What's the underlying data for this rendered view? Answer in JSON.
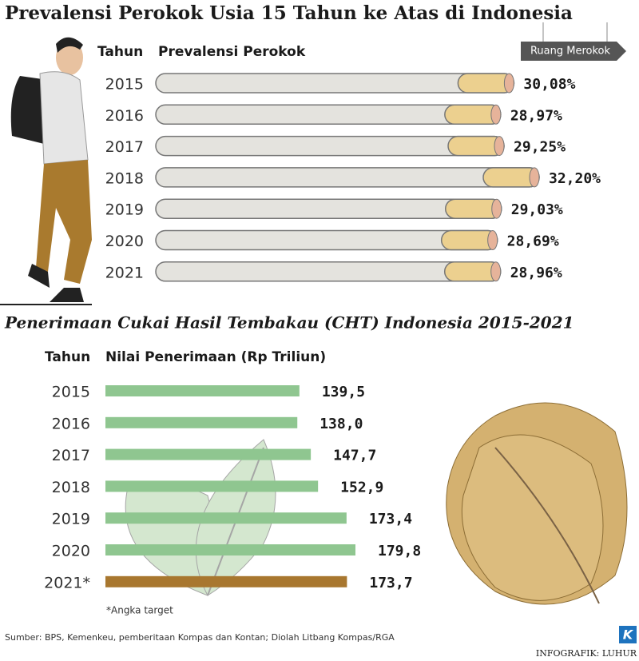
{
  "chart_data": [
    {
      "type": "bar",
      "title": "Prevalensi Perokok Usia 15 Tahun ke Atas di Indonesia",
      "category_header": "Tahun",
      "value_header": "Prevalensi Perokok",
      "signpost": "Ruang Merokok",
      "categories": [
        "2015",
        "2016",
        "2017",
        "2018",
        "2019",
        "2020",
        "2021"
      ],
      "values": [
        30.08,
        28.97,
        29.25,
        32.2,
        29.03,
        28.69,
        28.96
      ],
      "value_labels": [
        "30,08%",
        "28,97%",
        "29,25%",
        "32,20%",
        "29,03%",
        "28,69%",
        "28,96%"
      ],
      "color": "#e4e3de",
      "filter_color": "#ecd08f"
    },
    {
      "type": "bar",
      "title": "Penerimaan Cukai Hasil Tembakau (CHT) Indonesia 2015-2021",
      "category_header": "Tahun",
      "value_header": "Nilai Penerimaan (Rp Triliun)",
      "categories": [
        "2015",
        "2016",
        "2017",
        "2018",
        "2019",
        "2020",
        "2021*"
      ],
      "values": [
        139.5,
        138.0,
        147.7,
        152.9,
        173.4,
        179.8,
        173.7
      ],
      "value_labels": [
        "139,5",
        "138,0",
        "147,7",
        "152,9",
        "173,4",
        "179,8",
        "173,7"
      ],
      "colors": [
        "#8fc690",
        "#8fc690",
        "#8fc690",
        "#8fc690",
        "#8fc690",
        "#8fc690",
        "#a8772f"
      ],
      "footnote": "*Angka target"
    }
  ],
  "source": "Sumber: BPS, Kemenkeu, pemberitaan Kompas dan Kontan; Diolah Litbang Kompas/RGA",
  "credit": "INFOGRAFIK: LUHUR",
  "logo": "K"
}
